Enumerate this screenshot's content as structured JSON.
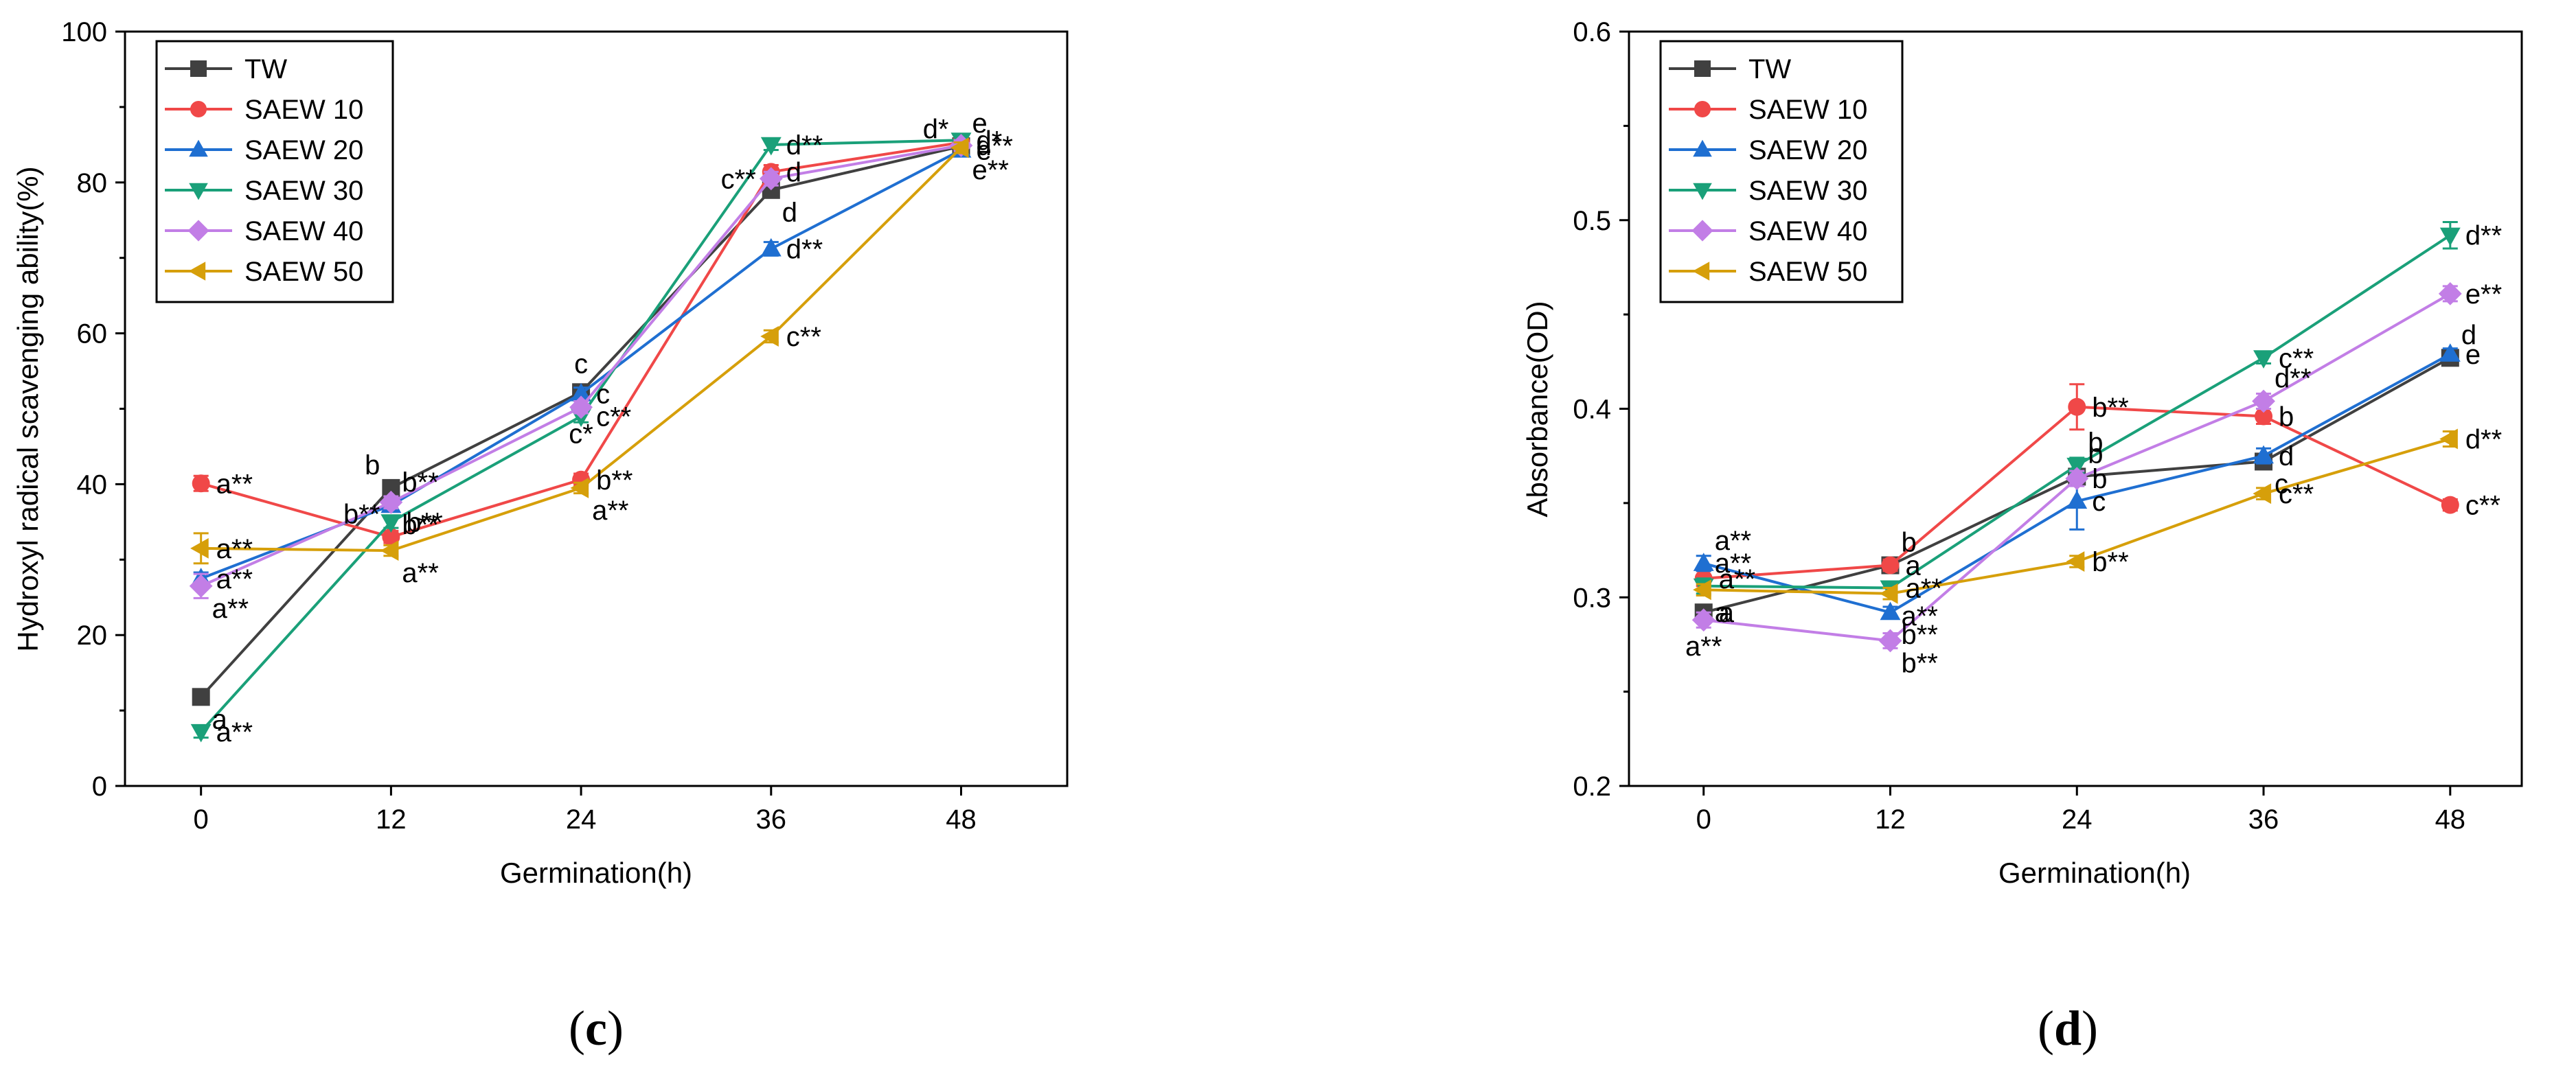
{
  "chart_data": [
    {
      "id": "c",
      "type": "line",
      "panel_label": "c",
      "xlabel": "Germination(h)",
      "ylabel": "Hydroxyl radical scavenging ability(%)",
      "x": [
        0,
        12,
        24,
        36,
        48
      ],
      "xticks": [
        "0",
        "12",
        "24",
        "36",
        "48"
      ],
      "xlim": [
        -4.8,
        54.7
      ],
      "ylim": [
        0,
        100
      ],
      "yticks": [
        "0",
        "20",
        "40",
        "60",
        "80",
        "100"
      ],
      "legend_position": "top-left",
      "series": [
        {
          "name": "TW",
          "color": "#404040",
          "marker": "square",
          "values": [
            11.8,
            39.5,
            52.2,
            79.0,
            84.8
          ],
          "err": [
            0.9,
            0.6,
            0.7,
            0.8,
            0.7
          ],
          "labels": [
            {
              "i": 0,
              "text": "a",
              "pos": "below-right"
            },
            {
              "i": 1,
              "text": "b",
              "pos": "above-left"
            },
            {
              "i": 2,
              "text": "c",
              "pos": "above"
            },
            {
              "i": 3,
              "text": "d",
              "pos": "below-right"
            },
            {
              "i": 4,
              "text": "e",
              "pos": "above-right"
            }
          ]
        },
        {
          "name": "SAEW 10",
          "color": "#f04848",
          "marker": "circle",
          "values": [
            40.1,
            33.0,
            40.6,
            81.4,
            85.3
          ],
          "err": [
            1.0,
            0.8,
            0.8,
            0.9,
            0.7
          ],
          "labels": [
            {
              "i": 0,
              "text": "a**",
              "pos": "right"
            },
            {
              "i": 1,
              "text": "b**",
              "pos": "above-left"
            },
            {
              "i": 2,
              "text": "b**",
              "pos": "right"
            },
            {
              "i": 3,
              "text": "d",
              "pos": "right"
            },
            {
              "i": 4,
              "text": "d*",
              "pos": "left-above"
            }
          ]
        },
        {
          "name": "SAEW 20",
          "color": "#1f6fd1",
          "marker": "triangle-up",
          "values": [
            27.5,
            37.2,
            52.0,
            71.2,
            84.3
          ],
          "err": [
            0.8,
            0.7,
            0.8,
            0.9,
            0.7
          ],
          "labels": [
            {
              "i": 0,
              "text": "a**",
              "pos": "right"
            },
            {
              "i": 1,
              "text": "b**",
              "pos": "above-right"
            },
            {
              "i": 2,
              "text": "c",
              "pos": "right"
            },
            {
              "i": 3,
              "text": "d**",
              "pos": "right"
            },
            {
              "i": 4,
              "text": "e",
              "pos": "right"
            }
          ]
        },
        {
          "name": "SAEW 30",
          "color": "#1aa079",
          "marker": "triangle-down",
          "values": [
            7.2,
            35.0,
            49.0,
            85.0,
            85.6
          ],
          "err": [
            0.8,
            0.8,
            0.8,
            0.7,
            0.7
          ],
          "labels": [
            {
              "i": 0,
              "text": "a**",
              "pos": "right"
            },
            {
              "i": 1,
              "text": "b**",
              "pos": "right"
            },
            {
              "i": 2,
              "text": "c**",
              "pos": "right"
            },
            {
              "i": 3,
              "text": "d**",
              "pos": "right"
            },
            {
              "i": 4,
              "text": "d*",
              "pos": "right"
            }
          ]
        },
        {
          "name": "SAEW 40",
          "color": "#c27ee6",
          "marker": "diamond",
          "values": [
            26.5,
            37.6,
            50.2,
            80.5,
            84.9
          ],
          "err": [
            1.6,
            0.8,
            0.8,
            0.9,
            0.7
          ],
          "labels": [
            {
              "i": 0,
              "text": "a**",
              "pos": "below-right"
            },
            {
              "i": 1,
              "text": "b**",
              "pos": "below-right"
            },
            {
              "i": 2,
              "text": "c*",
              "pos": "below"
            },
            {
              "i": 3,
              "text": "c**",
              "pos": "left"
            },
            {
              "i": 4,
              "text": "d**",
              "pos": "right"
            }
          ]
        },
        {
          "name": "SAEW 50",
          "color": "#d69f0a",
          "marker": "triangle-left",
          "values": [
            31.5,
            31.2,
            39.5,
            59.6,
            84.6
          ],
          "err": [
            2.0,
            0.7,
            0.7,
            0.8,
            0.7
          ],
          "labels": [
            {
              "i": 0,
              "text": "a**",
              "pos": "right"
            },
            {
              "i": 1,
              "text": "a**",
              "pos": "below-right"
            },
            {
              "i": 2,
              "text": "a**",
              "pos": "below-right"
            },
            {
              "i": 3,
              "text": "c**",
              "pos": "right"
            },
            {
              "i": 4,
              "text": "e**",
              "pos": "below-right"
            }
          ]
        }
      ]
    },
    {
      "id": "d",
      "type": "line",
      "panel_label": "d",
      "xlabel": "Germination(h)",
      "ylabel": "Absorbance(OD)",
      "x": [
        0,
        12,
        24,
        36,
        48
      ],
      "xticks": [
        "0",
        "12",
        "24",
        "36",
        "48"
      ],
      "xlim": [
        -4.8,
        52.6
      ],
      "ylim": [
        0.2,
        0.6
      ],
      "yticks": [
        "0.2",
        "0.3",
        "0.4",
        "0.5",
        "0.6"
      ],
      "legend_position": "top-left",
      "series": [
        {
          "name": "TW",
          "color": "#404040",
          "marker": "square",
          "values": [
            0.292,
            0.317,
            0.364,
            0.372,
            0.427
          ],
          "err": [
            0.003,
            0.003,
            0.003,
            0.003,
            0.003
          ],
          "labels": [
            {
              "i": 0,
              "text": "a",
              "pos": "right"
            },
            {
              "i": 1,
              "text": "b",
              "pos": "above-right"
            },
            {
              "i": 2,
              "text": "b",
              "pos": "above-right"
            },
            {
              "i": 3,
              "text": "c",
              "pos": "below-right"
            },
            {
              "i": 4,
              "text": "d",
              "pos": "above-right"
            }
          ]
        },
        {
          "name": "SAEW 10",
          "color": "#f04848",
          "marker": "circle",
          "values": [
            0.31,
            0.317,
            0.401,
            0.396,
            0.349
          ],
          "err": [
            0.004,
            0.003,
            0.012,
            0.004,
            0.003
          ],
          "labels": [
            {
              "i": 0,
              "text": "a**",
              "pos": "right"
            },
            {
              "i": 1,
              "text": "a",
              "pos": "right"
            },
            {
              "i": 2,
              "text": "b**",
              "pos": "right"
            },
            {
              "i": 3,
              "text": "b",
              "pos": "right"
            },
            {
              "i": 4,
              "text": "c**",
              "pos": "right"
            }
          ]
        },
        {
          "name": "SAEW 20",
          "color": "#1f6fd1",
          "marker": "triangle-up",
          "values": [
            0.318,
            0.292,
            0.351,
            0.375,
            0.429
          ],
          "err": [
            0.004,
            0.003,
            0.015,
            0.004,
            0.003
          ],
          "labels": [
            {
              "i": 0,
              "text": "a**",
              "pos": "above-right"
            },
            {
              "i": 1,
              "text": "b**",
              "pos": "below-right"
            },
            {
              "i": 2,
              "text": "c",
              "pos": "right"
            },
            {
              "i": 3,
              "text": "d",
              "pos": "right"
            },
            {
              "i": 4,
              "text": "e",
              "pos": "right"
            }
          ]
        },
        {
          "name": "SAEW 30",
          "color": "#1aa079",
          "marker": "triangle-down",
          "values": [
            0.306,
            0.305,
            0.37,
            0.427,
            0.492
          ],
          "err": [
            0.004,
            0.003,
            0.004,
            0.003,
            0.007
          ],
          "labels": [
            {
              "i": 0,
              "text": "a**",
              "pos": "above-right"
            },
            {
              "i": 1,
              "text": "a**",
              "pos": "right"
            },
            {
              "i": 2,
              "text": "b",
              "pos": "above-right"
            },
            {
              "i": 3,
              "text": "c**",
              "pos": "right"
            },
            {
              "i": 4,
              "text": "d**",
              "pos": "right"
            }
          ]
        },
        {
          "name": "SAEW 40",
          "color": "#c27ee6",
          "marker": "diamond",
          "values": [
            0.288,
            0.277,
            0.363,
            0.404,
            0.461
          ],
          "err": [
            0.004,
            0.004,
            0.004,
            0.004,
            0.004
          ],
          "labels": [
            {
              "i": 0,
              "text": "a**",
              "pos": "below"
            },
            {
              "i": 1,
              "text": "b**",
              "pos": "below-right"
            },
            {
              "i": 2,
              "text": "b",
              "pos": "right"
            },
            {
              "i": 3,
              "text": "d**",
              "pos": "above-right"
            },
            {
              "i": 4,
              "text": "e**",
              "pos": "right"
            }
          ]
        },
        {
          "name": "SAEW 50",
          "color": "#d69f0a",
          "marker": "triangle-left",
          "values": [
            0.304,
            0.302,
            0.319,
            0.355,
            0.384
          ],
          "err": [
            0.003,
            0.003,
            0.003,
            0.003,
            0.004
          ],
          "labels": [
            {
              "i": 0,
              "text": "a",
              "pos": "below-right"
            },
            {
              "i": 1,
              "text": "a**",
              "pos": "below-right"
            },
            {
              "i": 2,
              "text": "b**",
              "pos": "right"
            },
            {
              "i": 3,
              "text": "c**",
              "pos": "right"
            },
            {
              "i": 4,
              "text": "d**",
              "pos": "right"
            }
          ]
        }
      ]
    }
  ]
}
